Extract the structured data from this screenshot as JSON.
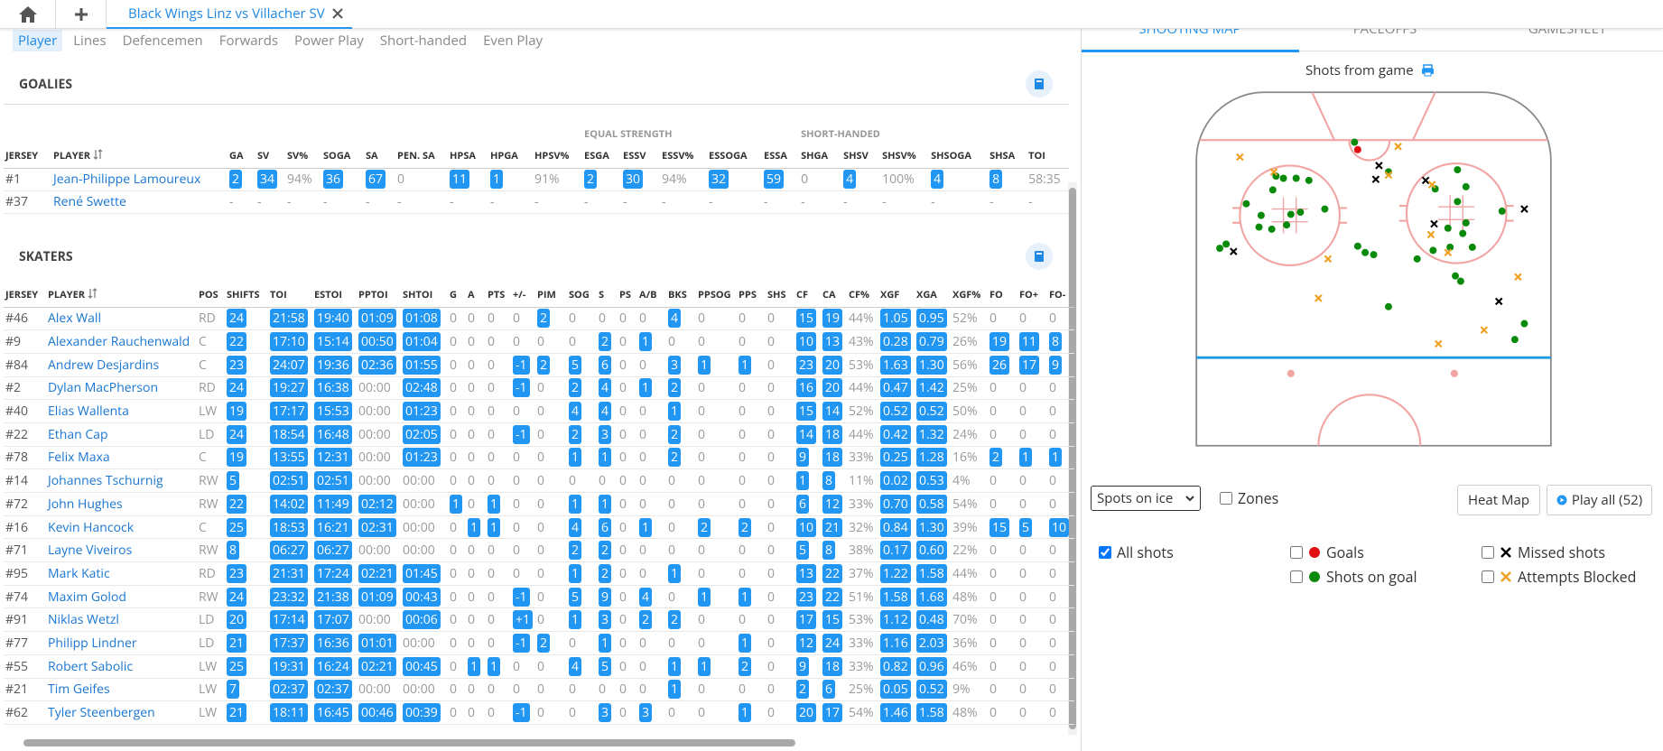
{
  "tab": {
    "title": "Black Wings Linz vs Villacher SV"
  },
  "subtabs": [
    "Player",
    "Lines",
    "Defencemen",
    "Forwards",
    "Power Play",
    "Short-handed",
    "Even Play"
  ],
  "goalies": {
    "title": "GOALIES",
    "groups": [
      "EQUAL STRENGTH",
      "SHORT-HANDED"
    ],
    "columns": [
      "JERSEY",
      "PLAYER",
      "GA",
      "SV",
      "SV%",
      "SOGA",
      "SA",
      "PEN. SA",
      "HPSA",
      "HPGA",
      "HPSV%",
      "ESGA",
      "ESSV",
      "ESSV%",
      "ESSOGA",
      "ESSA",
      "SHGA",
      "SHSV",
      "SHSV%",
      "SHSOGA",
      "SHSA",
      "TOI"
    ],
    "rows": [
      [
        "#1",
        "Jean-Philippe Lamoureux",
        "2",
        "34",
        "94%",
        "36",
        "67",
        "0",
        "11",
        "1",
        "91%",
        "2",
        "30",
        "94%",
        "32",
        "59",
        "0",
        "4",
        "100%",
        "4",
        "8",
        "58:35"
      ],
      [
        "#37",
        "René Swette",
        "-",
        "-",
        "-",
        "-",
        "-",
        "-",
        "-",
        "-",
        "-",
        "-",
        "-",
        "-",
        "-",
        "-",
        "-",
        "-",
        "-",
        "-",
        "-",
        "-"
      ]
    ]
  },
  "skaters": {
    "title": "SKATERS",
    "columns": [
      "JERSEY",
      "PLAYER",
      "POS",
      "SHIFTS",
      "TOI",
      "ESTOI",
      "PPTOI",
      "SHTOI",
      "G",
      "A",
      "PTS",
      "+/-",
      "PIM",
      "SOG",
      "S",
      "PS",
      "A/B",
      "BKS",
      "PPSOG",
      "PPS",
      "SHS",
      "CF",
      "CA",
      "CF%",
      "XGF",
      "XGA",
      "XGF%",
      "FO",
      "FO+",
      "FO-"
    ],
    "rows": [
      [
        "#46",
        "Alex Wall",
        "RD",
        "24",
        "21:58",
        "19:40",
        "01:09",
        "01:08",
        "0",
        "0",
        "0",
        "0",
        "2",
        "0",
        "0",
        "0",
        "0",
        "4",
        "0",
        "0",
        "0",
        "15",
        "19",
        "44%",
        "1.05",
        "0.95",
        "52%",
        "0",
        "0",
        "0"
      ],
      [
        "#9",
        "Alexander Rauchenwald",
        "C",
        "22",
        "17:10",
        "15:14",
        "00:50",
        "01:04",
        "0",
        "0",
        "0",
        "0",
        "0",
        "0",
        "2",
        "0",
        "1",
        "0",
        "0",
        "0",
        "0",
        "10",
        "13",
        "43%",
        "0.28",
        "0.79",
        "26%",
        "19",
        "11",
        "8"
      ],
      [
        "#84",
        "Andrew Desjardins",
        "C",
        "23",
        "24:07",
        "19:36",
        "02:36",
        "01:55",
        "0",
        "0",
        "0",
        "-1",
        "2",
        "5",
        "6",
        "0",
        "0",
        "3",
        "1",
        "1",
        "0",
        "23",
        "20",
        "53%",
        "1.63",
        "1.30",
        "56%",
        "26",
        "17",
        "9"
      ],
      [
        "#2",
        "Dylan MacPherson",
        "RD",
        "24",
        "19:27",
        "16:38",
        "00:00",
        "02:48",
        "0",
        "0",
        "0",
        "-1",
        "0",
        "2",
        "4",
        "0",
        "1",
        "2",
        "0",
        "0",
        "0",
        "16",
        "20",
        "44%",
        "0.47",
        "1.42",
        "25%",
        "0",
        "0",
        "0"
      ],
      [
        "#40",
        "Elias Wallenta",
        "LW",
        "19",
        "17:17",
        "15:53",
        "00:00",
        "01:23",
        "0",
        "0",
        "0",
        "0",
        "0",
        "4",
        "4",
        "0",
        "0",
        "1",
        "0",
        "0",
        "0",
        "15",
        "14",
        "52%",
        "0.52",
        "0.52",
        "50%",
        "0",
        "0",
        "0"
      ],
      [
        "#22",
        "Ethan Cap",
        "LD",
        "24",
        "18:54",
        "16:48",
        "00:00",
        "02:05",
        "0",
        "0",
        "0",
        "-1",
        "0",
        "2",
        "3",
        "0",
        "0",
        "2",
        "0",
        "0",
        "0",
        "14",
        "18",
        "44%",
        "0.42",
        "1.32",
        "24%",
        "0",
        "0",
        "0"
      ],
      [
        "#78",
        "Felix Maxa",
        "C",
        "19",
        "13:55",
        "12:31",
        "00:00",
        "01:23",
        "0",
        "0",
        "0",
        "0",
        "0",
        "1",
        "1",
        "0",
        "0",
        "2",
        "0",
        "0",
        "0",
        "9",
        "18",
        "33%",
        "0.25",
        "1.28",
        "16%",
        "2",
        "1",
        "1"
      ],
      [
        "#14",
        "Johannes Tschurnig",
        "RW",
        "5",
        "02:51",
        "02:51",
        "00:00",
        "00:00",
        "0",
        "0",
        "0",
        "0",
        "0",
        "0",
        "0",
        "0",
        "0",
        "0",
        "0",
        "0",
        "0",
        "1",
        "8",
        "11%",
        "0.02",
        "0.53",
        "4%",
        "0",
        "0",
        "0"
      ],
      [
        "#72",
        "John Hughes",
        "RW",
        "22",
        "14:02",
        "11:49",
        "02:12",
        "00:00",
        "1",
        "0",
        "1",
        "0",
        "0",
        "1",
        "1",
        "0",
        "0",
        "0",
        "0",
        "0",
        "0",
        "6",
        "12",
        "33%",
        "0.70",
        "0.58",
        "54%",
        "0",
        "0",
        "0"
      ],
      [
        "#16",
        "Kevin Hancock",
        "C",
        "25",
        "18:53",
        "16:21",
        "02:31",
        "00:00",
        "0",
        "1",
        "1",
        "0",
        "0",
        "4",
        "6",
        "0",
        "1",
        "0",
        "2",
        "2",
        "0",
        "10",
        "21",
        "32%",
        "0.84",
        "1.30",
        "39%",
        "15",
        "5",
        "10"
      ],
      [
        "#71",
        "Layne Viveiros",
        "RW",
        "8",
        "06:27",
        "06:27",
        "00:00",
        "00:00",
        "0",
        "0",
        "0",
        "0",
        "0",
        "2",
        "2",
        "0",
        "0",
        "0",
        "0",
        "0",
        "0",
        "5",
        "8",
        "38%",
        "0.17",
        "0.60",
        "22%",
        "0",
        "0",
        "0"
      ],
      [
        "#95",
        "Mark Katic",
        "RD",
        "23",
        "21:31",
        "17:24",
        "02:21",
        "01:45",
        "0",
        "0",
        "0",
        "0",
        "0",
        "1",
        "2",
        "0",
        "0",
        "1",
        "0",
        "0",
        "0",
        "13",
        "22",
        "37%",
        "1.22",
        "1.58",
        "44%",
        "0",
        "0",
        "0"
      ],
      [
        "#74",
        "Maxim Golod",
        "RW",
        "24",
        "23:32",
        "21:38",
        "01:09",
        "00:43",
        "0",
        "0",
        "0",
        "-1",
        "0",
        "5",
        "9",
        "0",
        "4",
        "0",
        "1",
        "1",
        "0",
        "23",
        "22",
        "51%",
        "1.58",
        "1.68",
        "48%",
        "0",
        "0",
        "0"
      ],
      [
        "#91",
        "Niklas Wetzl",
        "LD",
        "20",
        "17:14",
        "17:07",
        "00:00",
        "00:06",
        "0",
        "0",
        "0",
        "+1",
        "0",
        "1",
        "3",
        "0",
        "2",
        "2",
        "0",
        "0",
        "0",
        "17",
        "15",
        "53%",
        "1.12",
        "0.48",
        "70%",
        "0",
        "0",
        "0"
      ],
      [
        "#77",
        "Philipp Lindner",
        "LD",
        "21",
        "17:37",
        "16:36",
        "01:01",
        "00:00",
        "0",
        "0",
        "0",
        "-1",
        "2",
        "0",
        "1",
        "0",
        "0",
        "0",
        "0",
        "1",
        "0",
        "12",
        "24",
        "33%",
        "1.16",
        "2.03",
        "36%",
        "0",
        "0",
        "0"
      ],
      [
        "#55",
        "Robert Sabolic",
        "LW",
        "25",
        "19:31",
        "16:24",
        "02:21",
        "00:45",
        "0",
        "1",
        "1",
        "0",
        "0",
        "4",
        "5",
        "0",
        "0",
        "1",
        "1",
        "2",
        "0",
        "9",
        "18",
        "33%",
        "0.82",
        "0.96",
        "46%",
        "0",
        "0",
        "0"
      ],
      [
        "#21",
        "Tim Geifes",
        "LW",
        "7",
        "02:37",
        "02:37",
        "00:00",
        "00:00",
        "0",
        "0",
        "0",
        "0",
        "0",
        "0",
        "0",
        "0",
        "0",
        "1",
        "0",
        "0",
        "0",
        "2",
        "6",
        "25%",
        "0.05",
        "0.52",
        "9%",
        "0",
        "0",
        "0"
      ],
      [
        "#62",
        "Tyler Steenbergen",
        "LW",
        "21",
        "18:11",
        "16:45",
        "00:46",
        "00:39",
        "0",
        "0",
        "0",
        "-1",
        "0",
        "0",
        "3",
        "0",
        "3",
        "0",
        "0",
        "1",
        "0",
        "20",
        "17",
        "54%",
        "1.46",
        "1.58",
        "48%",
        "0",
        "0",
        "0"
      ]
    ]
  },
  "shooting_map": {
    "tabs": [
      "SHOOTING MAP",
      "FACEOFFS",
      "GAMESHEET"
    ],
    "title": "Shots from game",
    "select": "Spots on ice",
    "zones": "Zones",
    "heat_map": "Heat Map",
    "play_all": "Play all (52)",
    "filters": [
      "All shots",
      "Goals",
      "Missed shots",
      "Shots on goal",
      "Attempts Blocked"
    ]
  }
}
